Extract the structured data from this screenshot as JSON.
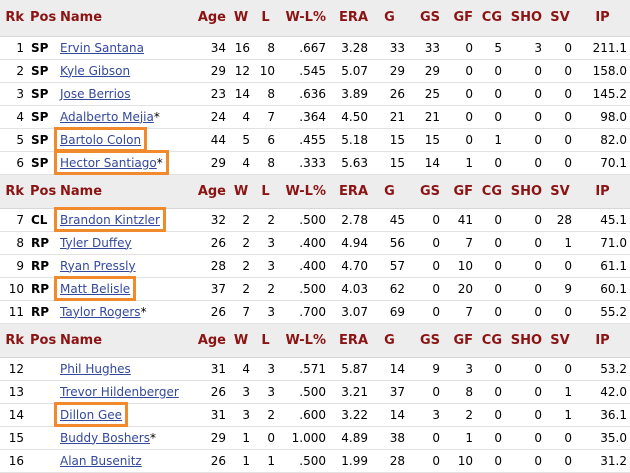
{
  "columns": [
    "Rk",
    "Pos",
    "Name",
    "Age",
    "W",
    "L",
    "W-L%",
    "ERA",
    "G",
    "GS",
    "GF",
    "CG",
    "SHO",
    "SV",
    "IP"
  ],
  "sections": [
    {
      "rows": [
        {
          "rk": "1",
          "pos": "SP",
          "name": "Ervin Santana",
          "star": "",
          "age": "34",
          "w": "16",
          "l": "8",
          "wl": ".667",
          "era": "3.28",
          "g": "33",
          "gs": "33",
          "gf": "0",
          "cg": "5",
          "sho": "3",
          "sv": "0",
          "ip": "211.1"
        },
        {
          "rk": "2",
          "pos": "SP",
          "name": "Kyle Gibson",
          "star": "",
          "age": "29",
          "w": "12",
          "l": "10",
          "wl": ".545",
          "era": "5.07",
          "g": "29",
          "gs": "29",
          "gf": "0",
          "cg": "0",
          "sho": "0",
          "sv": "0",
          "ip": "158.0"
        },
        {
          "rk": "3",
          "pos": "SP",
          "name": "Jose Berrios",
          "star": "",
          "age": "23",
          "w": "14",
          "l": "8",
          "wl": ".636",
          "era": "3.89",
          "g": "26",
          "gs": "25",
          "gf": "0",
          "cg": "0",
          "sho": "0",
          "sv": "0",
          "ip": "145.2"
        },
        {
          "rk": "4",
          "pos": "SP",
          "name": "Adalberto Mejia",
          "star": "*",
          "age": "24",
          "w": "4",
          "l": "7",
          "wl": ".364",
          "era": "4.50",
          "g": "21",
          "gs": "21",
          "gf": "0",
          "cg": "0",
          "sho": "0",
          "sv": "0",
          "ip": "98.0"
        },
        {
          "rk": "5",
          "pos": "SP",
          "name": "Bartolo Colon",
          "star": "",
          "age": "44",
          "w": "5",
          "l": "6",
          "wl": ".455",
          "era": "5.18",
          "g": "15",
          "gs": "15",
          "gf": "0",
          "cg": "1",
          "sho": "0",
          "sv": "0",
          "ip": "82.0"
        },
        {
          "rk": "6",
          "pos": "SP",
          "name": "Hector Santiago",
          "star": "*",
          "age": "29",
          "w": "4",
          "l": "8",
          "wl": ".333",
          "era": "5.63",
          "g": "15",
          "gs": "14",
          "gf": "1",
          "cg": "0",
          "sho": "0",
          "sv": "0",
          "ip": "70.1"
        }
      ]
    },
    {
      "rows": [
        {
          "rk": "7",
          "pos": "CL",
          "name": "Brandon Kintzler",
          "star": "",
          "age": "32",
          "w": "2",
          "l": "2",
          "wl": ".500",
          "era": "2.78",
          "g": "45",
          "gs": "0",
          "gf": "41",
          "cg": "0",
          "sho": "0",
          "sv": "28",
          "ip": "45.1"
        },
        {
          "rk": "8",
          "pos": "RP",
          "name": "Tyler Duffey",
          "star": "",
          "age": "26",
          "w": "2",
          "l": "3",
          "wl": ".400",
          "era": "4.94",
          "g": "56",
          "gs": "0",
          "gf": "7",
          "cg": "0",
          "sho": "0",
          "sv": "1",
          "ip": "71.0"
        },
        {
          "rk": "9",
          "pos": "RP",
          "name": "Ryan Pressly",
          "star": "",
          "age": "28",
          "w": "2",
          "l": "3",
          "wl": ".400",
          "era": "4.70",
          "g": "57",
          "gs": "0",
          "gf": "10",
          "cg": "0",
          "sho": "0",
          "sv": "0",
          "ip": "61.1"
        },
        {
          "rk": "10",
          "pos": "RP",
          "name": "Matt Belisle",
          "star": "",
          "age": "37",
          "w": "2",
          "l": "2",
          "wl": ".500",
          "era": "4.03",
          "g": "62",
          "gs": "0",
          "gf": "20",
          "cg": "0",
          "sho": "0",
          "sv": "9",
          "ip": "60.1"
        },
        {
          "rk": "11",
          "pos": "RP",
          "name": "Taylor Rogers",
          "star": "*",
          "age": "26",
          "w": "7",
          "l": "3",
          "wl": ".700",
          "era": "3.07",
          "g": "69",
          "gs": "0",
          "gf": "7",
          "cg": "0",
          "sho": "0",
          "sv": "0",
          "ip": "55.2"
        }
      ]
    },
    {
      "rows": [
        {
          "rk": "12",
          "pos": "",
          "name": "Phil Hughes",
          "star": "",
          "age": "31",
          "w": "4",
          "l": "3",
          "wl": ".571",
          "era": "5.87",
          "g": "14",
          "gs": "9",
          "gf": "3",
          "cg": "0",
          "sho": "0",
          "sv": "0",
          "ip": "53.2"
        },
        {
          "rk": "13",
          "pos": "",
          "name": "Trevor Hildenberger",
          "star": "",
          "age": "26",
          "w": "3",
          "l": "3",
          "wl": ".500",
          "era": "3.21",
          "g": "37",
          "gs": "0",
          "gf": "8",
          "cg": "0",
          "sho": "0",
          "sv": "1",
          "ip": "42.0"
        },
        {
          "rk": "14",
          "pos": "",
          "name": "Dillon Gee",
          "star": "",
          "age": "31",
          "w": "3",
          "l": "2",
          "wl": ".600",
          "era": "3.22",
          "g": "14",
          "gs": "3",
          "gf": "2",
          "cg": "0",
          "sho": "0",
          "sv": "1",
          "ip": "36.1"
        },
        {
          "rk": "15",
          "pos": "",
          "name": "Buddy Boshers",
          "star": "*",
          "age": "29",
          "w": "1",
          "l": "0",
          "wl": "1.000",
          "era": "4.89",
          "g": "38",
          "gs": "0",
          "gf": "1",
          "cg": "0",
          "sho": "0",
          "sv": "0",
          "ip": "35.0"
        },
        {
          "rk": "16",
          "pos": "",
          "name": "Alan Busenitz",
          "star": "",
          "age": "26",
          "w": "1",
          "l": "1",
          "wl": ".500",
          "era": "1.99",
          "g": "28",
          "gs": "0",
          "gf": "10",
          "cg": "0",
          "sho": "0",
          "sv": "0",
          "ip": "31.2"
        }
      ]
    }
  ],
  "highlight_color": "#f08a2c",
  "highlighted_players": [
    "Bartolo Colon",
    "Hector Santiago",
    "Brandon Kintzler",
    "Matt Belisle",
    "Dillon Gee"
  ]
}
